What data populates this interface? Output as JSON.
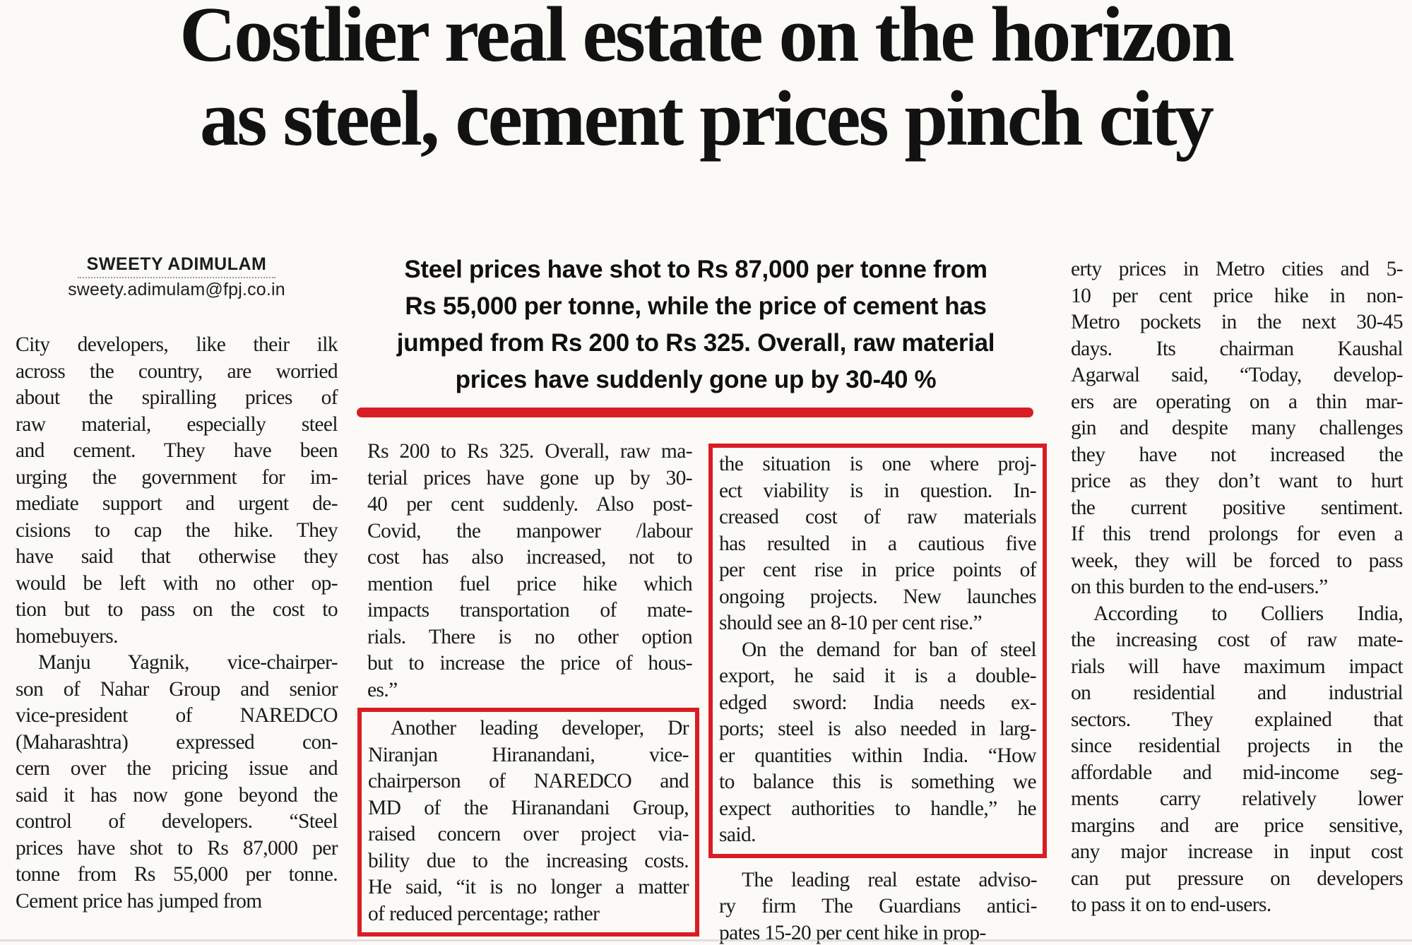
{
  "colors": {
    "accent_red": "#d91d24"
  },
  "headline": {
    "line1": "Costlier real estate on the horizon",
    "line2": "as steel, cement prices pinch city"
  },
  "byline": {
    "author": "SWEETY ADIMULAM",
    "email": "sweety.adimulam@fpj.co.in"
  },
  "standfirst": {
    "lines": [
      "Steel prices have shot to Rs 87,000 per tonne from",
      "Rs 55,000 per tonne, while the price of cement has",
      "jumped from Rs 200 to Rs 325. Overall, raw material",
      "prices have suddenly gone up by 30-40 %"
    ]
  },
  "columns": [
    {
      "name": "column-1",
      "blocks": [
        {
          "type": "text",
          "paragraphs": [
            {
              "indent": false,
              "lines": [
                "City developers, like their ilk",
                "across the country, are worried",
                "about the spiralling prices of",
                "raw material, especially steel",
                "and cement. They have been",
                "urging the government for im-",
                "mediate support and urgent de-",
                "cisions to cap the hike. They",
                "have said that otherwise they",
                "would be left with no other op-",
                "tion but to pass on the cost to",
                "homebuyers."
              ]
            },
            {
              "indent": true,
              "lines": [
                "Manju Yagnik, vice-chairper-",
                "son of Nahar Group and senior",
                "vice-president of NAREDCO",
                "(Maharashtra) expressed con-",
                "cern over the pricing issue and",
                "said it has now gone beyond the",
                "control of developers. “Steel",
                "prices have shot to Rs 87,000 per",
                "tonne from Rs 55,000 per tonne.",
                "Cement price has jumped from"
              ]
            }
          ]
        }
      ]
    },
    {
      "name": "column-2",
      "blocks": [
        {
          "type": "text",
          "paragraphs": [
            {
              "indent": false,
              "lines": [
                "Rs 200 to Rs 325. Overall, raw ma-",
                "terial prices have gone up by 30-",
                "40 per cent suddenly. Also post-",
                "Covid, the manpower /labour",
                "cost has also increased, not to",
                "mention fuel price hike which",
                "impacts transportation of mate-",
                "rials. There is no other option",
                "but to increase the price of hous-",
                "es.”"
              ]
            }
          ]
        },
        {
          "type": "boxed",
          "paragraphs": [
            {
              "indent": true,
              "lines": [
                "Another leading developer, Dr",
                "Niranjan Hiranandani, vice-",
                "chairperson of NAREDCO and",
                "MD of the Hiranandani Group,",
                "raised concern over project via-",
                "bility due to the increasing costs.",
                "He said, “it is no longer a matter",
                "of reduced percentage; rather"
              ]
            }
          ]
        }
      ]
    },
    {
      "name": "column-3",
      "blocks": [
        {
          "type": "boxed",
          "paragraphs": [
            {
              "indent": false,
              "lines": [
                "the situation is one where proj-",
                "ect viability is in question. In-",
                "creased cost of raw materials",
                "has resulted in a cautious five",
                "per cent rise in price points of",
                "ongoing projects. New launches",
                "should see an 8-10 per cent rise.”"
              ]
            },
            {
              "indent": true,
              "lines": [
                "On the demand for ban of steel",
                "export, he said it is a double-",
                "edged sword: India needs ex-",
                "ports; steel is also needed in larg-",
                "er quantities within India. “How",
                "to balance this is something we",
                "expect authorities to handle,” he",
                "said."
              ]
            }
          ]
        },
        {
          "type": "text",
          "paragraphs": [
            {
              "indent": true,
              "lines": [
                "The leading real estate adviso-",
                "ry firm The Guardians antici-",
                "pates 15-20 per cent hike in prop-"
              ]
            }
          ]
        }
      ]
    },
    {
      "name": "column-4",
      "blocks": [
        {
          "type": "text",
          "paragraphs": [
            {
              "indent": false,
              "lines": [
                "erty prices in Metro cities and 5-",
                "10 per cent price hike in non-",
                "Metro pockets in the next 30-45",
                "days. Its chairman Kaushal",
                "Agarwal said, “Today, develop-",
                "ers are operating on a thin mar-",
                "gin and despite many challenges",
                "they have not increased the",
                "price as they don’t want to hurt",
                "the current positive sentiment.",
                "If this trend prolongs for even a",
                "week, they will be forced to pass",
                "on this burden to the end-users.”"
              ]
            },
            {
              "indent": true,
              "lines": [
                "According to Colliers India,",
                "the increasing cost of raw mate-",
                "rials will have maximum impact",
                "on residential and industrial",
                "sectors. They explained that",
                "since residential projects in the",
                "affordable and mid-income seg-",
                "ments carry relatively lower",
                "margins and are price sensitive,",
                "any major increase in input cost",
                "can put pressure on developers",
                "to pass it on to end-users."
              ]
            }
          ]
        }
      ]
    }
  ]
}
